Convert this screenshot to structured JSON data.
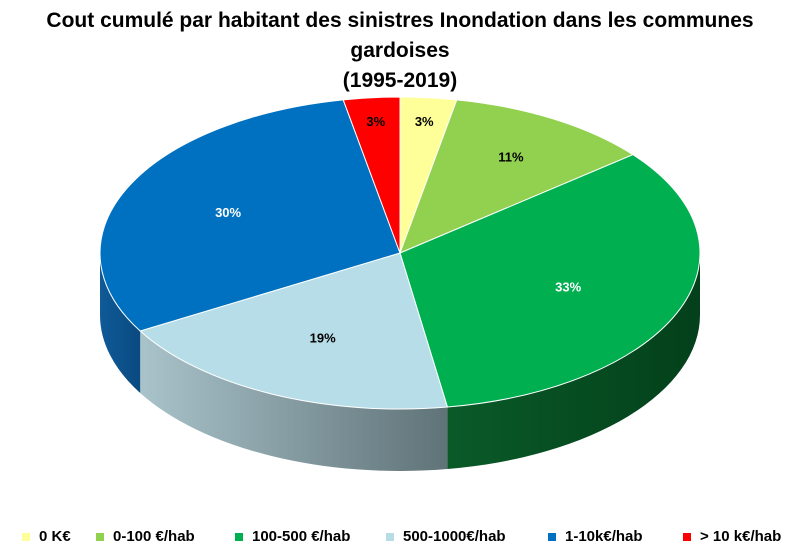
{
  "chart_data": {
    "type": "pie",
    "title": "Cout cumulé par habitant des sinistres Inondation dans les communes gardoises",
    "subtitle": "(1995-2019)",
    "categories": [
      "0 K€",
      "0-100 €/hab",
      "100-500 €/hab",
      "500-1000€/hab",
      "1-10k€/hab",
      "> 10 k€/hab"
    ],
    "values": [
      3,
      11,
      33,
      19,
      30,
      3
    ],
    "data_labels": [
      "3%",
      "11%",
      "33%",
      "19%",
      "30%",
      "3%"
    ],
    "colors": [
      "#FFFF99",
      "#92D050",
      "#00B050",
      "#B7DEE8",
      "#0070C0",
      "#FF0000"
    ],
    "label_colors": [
      "#000000",
      "#000000",
      "#FFFFFF",
      "#000000",
      "#FFFFFF",
      "#000000"
    ],
    "style": "3d",
    "legend_position": "bottom"
  }
}
